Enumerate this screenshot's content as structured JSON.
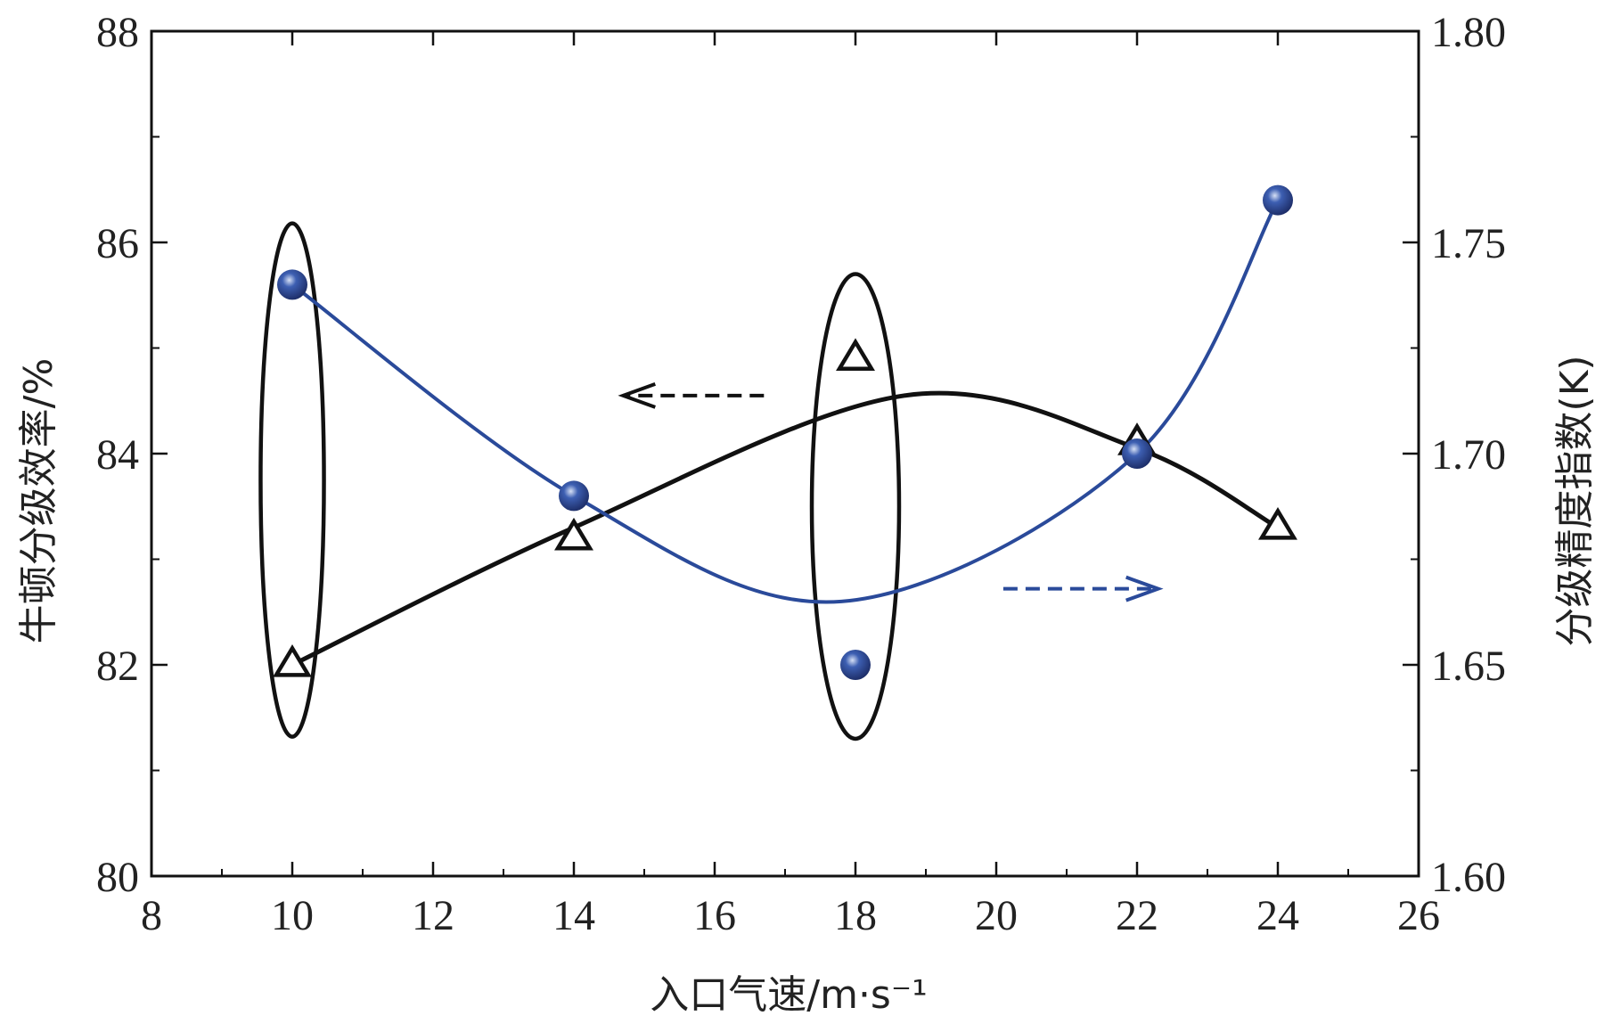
{
  "colors": {
    "efficiency_series": "#111111",
    "precision_series": "#2a4a9a",
    "marker_fill": "#3d5fb2"
  },
  "chart_data": {
    "type": "line",
    "x_axis": {
      "label": "入口气速/m·s⁻¹",
      "ticks": [
        "8",
        "10",
        "12",
        "14",
        "16",
        "18",
        "20",
        "22",
        "24",
        "26"
      ],
      "range": [
        8,
        26
      ]
    },
    "y_axis_left": {
      "label": "牛顿分级效率/%",
      "ticks": [
        "80",
        "82",
        "84",
        "86",
        "88"
      ],
      "range": [
        80,
        88
      ]
    },
    "y_axis_right": {
      "label": "分级精度指数(K)",
      "ticks": [
        "1.60",
        "1.65",
        "1.70",
        "1.75",
        "1.80"
      ],
      "range": [
        1.6,
        1.8
      ]
    },
    "series": [
      {
        "axis": "left",
        "marker": "open-triangle",
        "points": [
          {
            "x": 10,
            "y": 82.0
          },
          {
            "x": 14,
            "y": 83.2
          },
          {
            "x": 18,
            "y": 84.9
          },
          {
            "x": 22,
            "y": 84.1
          },
          {
            "x": 24,
            "y": 83.3
          }
        ],
        "fit_curve": [
          {
            "x": 10,
            "y": 82.0
          },
          {
            "x": 14,
            "y": 83.3
          },
          {
            "x": 18.7,
            "y": 84.55
          },
          {
            "x": 22,
            "y": 84.05
          },
          {
            "x": 24,
            "y": 83.3
          }
        ]
      },
      {
        "axis": "right",
        "marker": "filled-circle",
        "points": [
          {
            "x": 10,
            "y": 1.74
          },
          {
            "x": 14,
            "y": 1.69
          },
          {
            "x": 18,
            "y": 1.65
          },
          {
            "x": 22,
            "y": 1.7
          },
          {
            "x": 24,
            "y": 1.76
          }
        ],
        "fit_curve": [
          {
            "x": 10,
            "y": 1.74
          },
          {
            "x": 14,
            "y": 1.69
          },
          {
            "x": 17.8,
            "y": 1.665
          },
          {
            "x": 22,
            "y": 1.7
          },
          {
            "x": 24,
            "y": 1.76
          }
        ]
      }
    ],
    "annotations": [
      {
        "type": "ellipse",
        "center_x": 10,
        "center_y": 83.75,
        "semi_x": 0.45,
        "semi_y": 2.43
      },
      {
        "type": "ellipse",
        "center_x": 18,
        "center_y": 83.5,
        "semi_x": 0.62,
        "semi_y": 2.2
      },
      {
        "type": "dashed-arrow",
        "direction": "left",
        "series_axis": "left",
        "x_from": 16.7,
        "x_to": 14.7,
        "y": 84.55
      },
      {
        "type": "dashed-arrow",
        "direction": "right",
        "series_axis": "right",
        "x_from": 20.1,
        "x_to": 22.3,
        "y": 1.668
      }
    ]
  }
}
